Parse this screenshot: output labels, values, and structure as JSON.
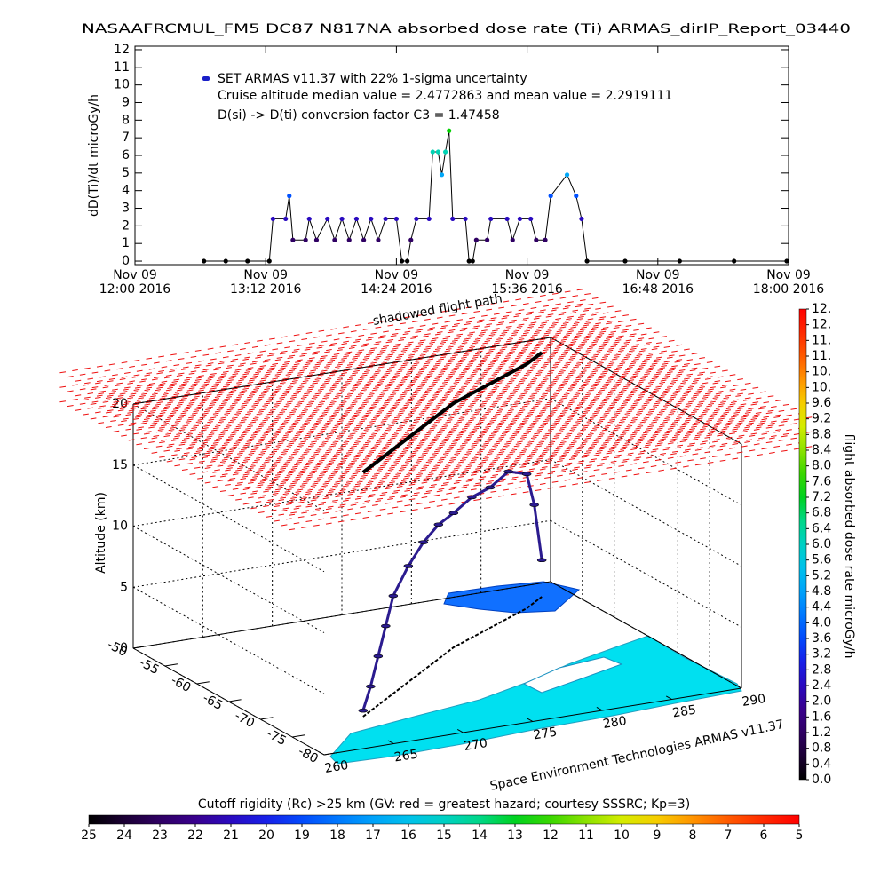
{
  "chart_data": [
    {
      "type": "line",
      "title": "NASAAFRCMUL_FM5 DC87 N817NA absorbed dose rate (Ti) ARMAS_dirIP_Report_03440",
      "ylabel": "dD(Ti)/dt microGy/h",
      "annotations": [
        "Cruise altitude median value = 2.4772863 and mean value = 2.2919111",
        "D(si) -> D(ti) conversion factor C3 = 1.47458"
      ],
      "xlim": [
        "2016-11-09 12:00",
        "2016-11-09 18:00"
      ],
      "xticks": [
        {
          "value": "2016-11-09 12:00",
          "label": "Nov 09\n12:00 2016"
        },
        {
          "value": "2016-11-09 13:12",
          "label": "Nov 09\n13:12 2016"
        },
        {
          "value": "2016-11-09 14:24",
          "label": "Nov 09\n14:24 2016"
        },
        {
          "value": "2016-11-09 15:36",
          "label": "Nov 09\n15:36 2016"
        },
        {
          "value": "2016-11-09 16:48",
          "label": "Nov 09\n16:48 2016"
        },
        {
          "value": "2016-11-09 18:00",
          "label": "Nov 09\n18:00 2016"
        }
      ],
      "ylim": [
        -0.2,
        12.2
      ],
      "yticks": [
        0,
        1,
        2,
        3,
        4,
        5,
        6,
        7,
        8,
        9,
        10,
        11,
        12
      ],
      "series": [
        {
          "name": "SET ARMAS v11.37 with 22% 1-sigma uncertainty",
          "color": "#000000",
          "x": [
            "2016-11-09 12:38",
            "2016-11-09 12:50",
            "2016-11-09 13:02",
            "2016-11-09 13:14",
            "2016-11-09 13:16",
            "2016-11-09 13:23",
            "2016-11-09 13:25",
            "2016-11-09 13:27",
            "2016-11-09 13:34",
            "2016-11-09 13:36",
            "2016-11-09 13:40",
            "2016-11-09 13:46",
            "2016-11-09 13:50",
            "2016-11-09 13:54",
            "2016-11-09 13:58",
            "2016-11-09 14:02",
            "2016-11-09 14:06",
            "2016-11-09 14:10",
            "2016-11-09 14:14",
            "2016-11-09 14:18",
            "2016-11-09 14:24",
            "2016-11-09 14:27",
            "2016-11-09 14:30",
            "2016-11-09 14:32",
            "2016-11-09 14:35",
            "2016-11-09 14:42",
            "2016-11-09 14:44",
            "2016-11-09 14:47",
            "2016-11-09 14:49",
            "2016-11-09 14:51",
            "2016-11-09 14:53",
            "2016-11-09 14:55",
            "2016-11-09 15:02",
            "2016-11-09 15:04",
            "2016-11-09 15:06",
            "2016-11-09 15:08",
            "2016-11-09 15:14",
            "2016-11-09 15:16",
            "2016-11-09 15:25",
            "2016-11-09 15:28",
            "2016-11-09 15:32",
            "2016-11-09 15:38",
            "2016-11-09 15:41",
            "2016-11-09 15:46",
            "2016-11-09 15:49",
            "2016-11-09 15:58",
            "2016-11-09 16:03",
            "2016-11-09 16:06",
            "2016-11-09 16:09",
            "2016-11-09 16:30",
            "2016-11-09 17:00",
            "2016-11-09 17:30",
            "2016-11-09 17:59"
          ],
          "values": [
            0,
            0,
            0,
            0,
            2.4,
            2.4,
            3.7,
            1.2,
            1.2,
            2.4,
            1.2,
            2.4,
            1.2,
            2.4,
            1.2,
            2.4,
            1.2,
            2.4,
            1.2,
            2.4,
            2.4,
            0,
            0,
            1.2,
            2.4,
            2.4,
            6.2,
            6.2,
            4.9,
            6.2,
            7.4,
            2.4,
            2.4,
            0,
            0,
            1.2,
            1.2,
            2.4,
            2.4,
            1.2,
            2.4,
            2.4,
            1.2,
            1.2,
            3.7,
            4.9,
            3.7,
            2.4,
            0,
            0,
            0,
            0,
            0
          ]
        }
      ]
    },
    {
      "type": "scatter3d",
      "zlabel": "Altitude (km)",
      "credit": "Space Environment Technologies ARMAS v11.37",
      "annotation": "shadowed flight path",
      "xlim": [
        260,
        290
      ],
      "xticks": [
        260,
        265,
        270,
        275,
        280,
        285,
        290
      ],
      "ylim": [
        -80,
        -50
      ],
      "yticks": [
        -50,
        -55,
        -60,
        -65,
        -70,
        -75,
        -80
      ],
      "zlim": [
        0,
        20
      ],
      "zticks": [
        0,
        5,
        10,
        15,
        20
      ],
      "color": "#2b1b8f",
      "lon": [
        266,
        267,
        268,
        269,
        270,
        272,
        274,
        276,
        278,
        280,
        282,
        284,
        286,
        287,
        288
      ],
      "lat": [
        -73,
        -72,
        -71,
        -70,
        -69,
        -67,
        -65,
        -63,
        -61,
        -59.5,
        -58,
        -56.5,
        -55,
        -54,
        -53
      ],
      "alt": [
        0.5,
        2,
        4,
        6,
        8,
        9.5,
        10.5,
        11,
        11,
        11.5,
        11.5,
        12,
        11,
        8,
        3
      ]
    },
    {
      "type": "colorbar",
      "orientation": "vertical",
      "label": "flight absorbed dose rate microGy/h",
      "ylim": [
        0,
        12
      ],
      "yticks": [
        {
          "value": 0,
          "label": "0.0"
        },
        0.4,
        0.8,
        1.2,
        1.6,
        {
          "value": 2,
          "label": "2.0"
        },
        2.4,
        2.8,
        3.2,
        3.6,
        {
          "value": 4,
          "label": "4.0"
        },
        4.4,
        4.8,
        5.2,
        5.6,
        {
          "value": 6,
          "label": "6.0"
        },
        6.4,
        6.8,
        7.2,
        7.6,
        {
          "value": 8,
          "label": "8.0"
        },
        8.4,
        8.8,
        9.2,
        9.6,
        {
          "value": 10,
          "label": "10."
        },
        {
          "value": 10.4,
          "label": "10."
        },
        {
          "value": 10.8,
          "label": "11."
        },
        {
          "value": 11.2,
          "label": "11."
        },
        {
          "value": 11.6,
          "label": "12."
        },
        {
          "value": 12,
          "label": "12."
        }
      ]
    },
    {
      "type": "colorbar",
      "orientation": "horizontal",
      "label": "Cutoff rigidity (Rc) >25 km (GV: red = greatest hazard; courtesy SSSRC; Kp=3)",
      "xlim": [
        25,
        5
      ],
      "xticks": [
        25,
        24,
        23,
        22,
        21,
        20,
        19,
        18,
        17,
        16,
        15,
        14,
        13,
        12,
        11,
        10,
        9,
        8,
        7,
        6,
        5
      ]
    }
  ]
}
